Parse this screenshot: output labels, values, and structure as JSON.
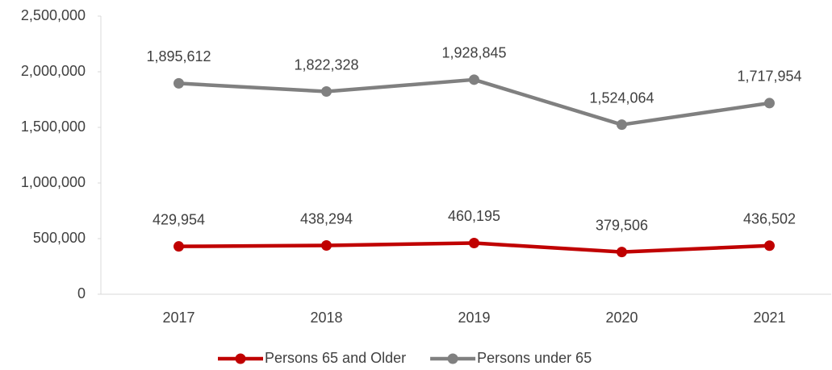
{
  "chart_data": {
    "type": "line",
    "categories": [
      "2017",
      "2018",
      "2019",
      "2020",
      "2021"
    ],
    "series": [
      {
        "name": "Persons 65 and Older",
        "color": "#c00000",
        "values": [
          429954,
          438294,
          460195,
          379506,
          436502
        ],
        "value_labels": [
          "429,954",
          "438,294",
          "460,195",
          "379,506",
          "436,502"
        ]
      },
      {
        "name": "Persons under 65",
        "color": "#808080",
        "values": [
          1895612,
          1822328,
          1928845,
          1524064,
          1717954
        ],
        "value_labels": [
          "1,895,612",
          "1,822,328",
          "1,928,845",
          "1,524,064",
          "1,717,954"
        ]
      }
    ],
    "ylim": [
      0,
      2500000
    ],
    "yticks": [
      0,
      {
        "value": 500000,
        "label": "500,000"
      },
      {
        "value": 1000000,
        "label": "1,000,000"
      },
      {
        "value": 1500000,
        "label": "1,500,000"
      },
      {
        "value": 2000000,
        "label": "2,000,000"
      },
      {
        "value": 2500000,
        "label": "2,500,000"
      }
    ],
    "grid": false,
    "legend": "bottom"
  }
}
